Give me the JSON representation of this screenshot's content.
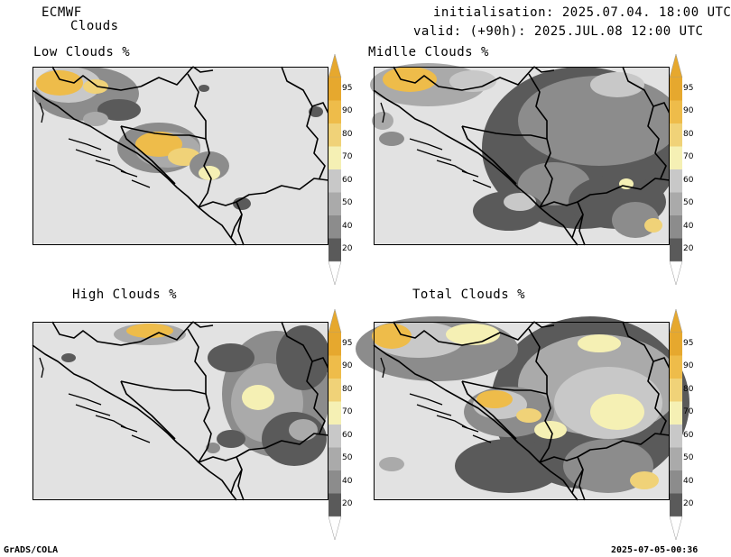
{
  "header": {
    "model": "ECMWF",
    "variable": "Clouds",
    "init": "initialisation: 2025.07.04. 18:00 UTC",
    "valid": "valid: (+90h): 2025.JUL.08 12:00 UTC"
  },
  "panels": [
    {
      "title": "Low Clouds %"
    },
    {
      "title": "Midlle Clouds %"
    },
    {
      "title": "High Clouds %"
    },
    {
      "title": "Total Clouds %"
    }
  ],
  "colorbar": {
    "levels": [
      "20",
      "40",
      "50",
      "60",
      "70",
      "80",
      "90",
      "95"
    ],
    "colors": [
      "#5a5a5a",
      "#8c8c8c",
      "#aaaaaa",
      "#c8c8c8",
      "#f5f0b4",
      "#f0d278",
      "#eebc4a",
      "#e6a82e"
    ],
    "below_color": "#ffffff",
    "above_color": "#e6a82e"
  },
  "footer": {
    "left": "GrADS/COLA",
    "right": "2025-07-05-00:36"
  }
}
